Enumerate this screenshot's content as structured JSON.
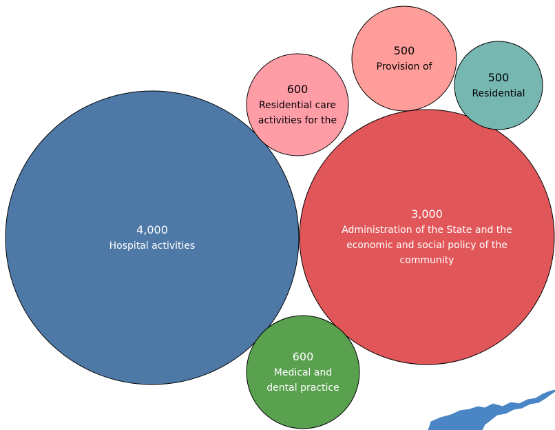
{
  "chart_data": {
    "type": "bubble",
    "bubbles": [
      {
        "value": 4000,
        "value_label": "4,000",
        "label_lines": [
          "Hospital activities"
        ],
        "color": "#4e79a7",
        "text_color": "#ffffff"
      },
      {
        "value": 3000,
        "value_label": "3,000",
        "label_lines": [
          "Administration of the State and the",
          "economic and social policy of the",
          "community"
        ],
        "color": "#e15759",
        "text_color": "#ffffff"
      },
      {
        "value": 600,
        "value_label": "600",
        "label_lines": [
          "Residential care",
          "activities for the"
        ],
        "color": "#ff9da7",
        "text_color": "#000000"
      },
      {
        "value": 500,
        "value_label": "500",
        "label_lines": [
          "Provision of"
        ],
        "color": "#ff9d9a",
        "text_color": "#000000"
      },
      {
        "value": 500,
        "value_label": "500",
        "label_lines": [
          "Residential"
        ],
        "color": "#76b7b2",
        "text_color": "#000000"
      },
      {
        "value": 600,
        "value_label": "600",
        "label_lines": [
          "Medical and",
          "dental practice"
        ],
        "color": "#59a14f",
        "text_color": "#ffffff"
      }
    ],
    "decoration_color": "#4a86c5"
  }
}
